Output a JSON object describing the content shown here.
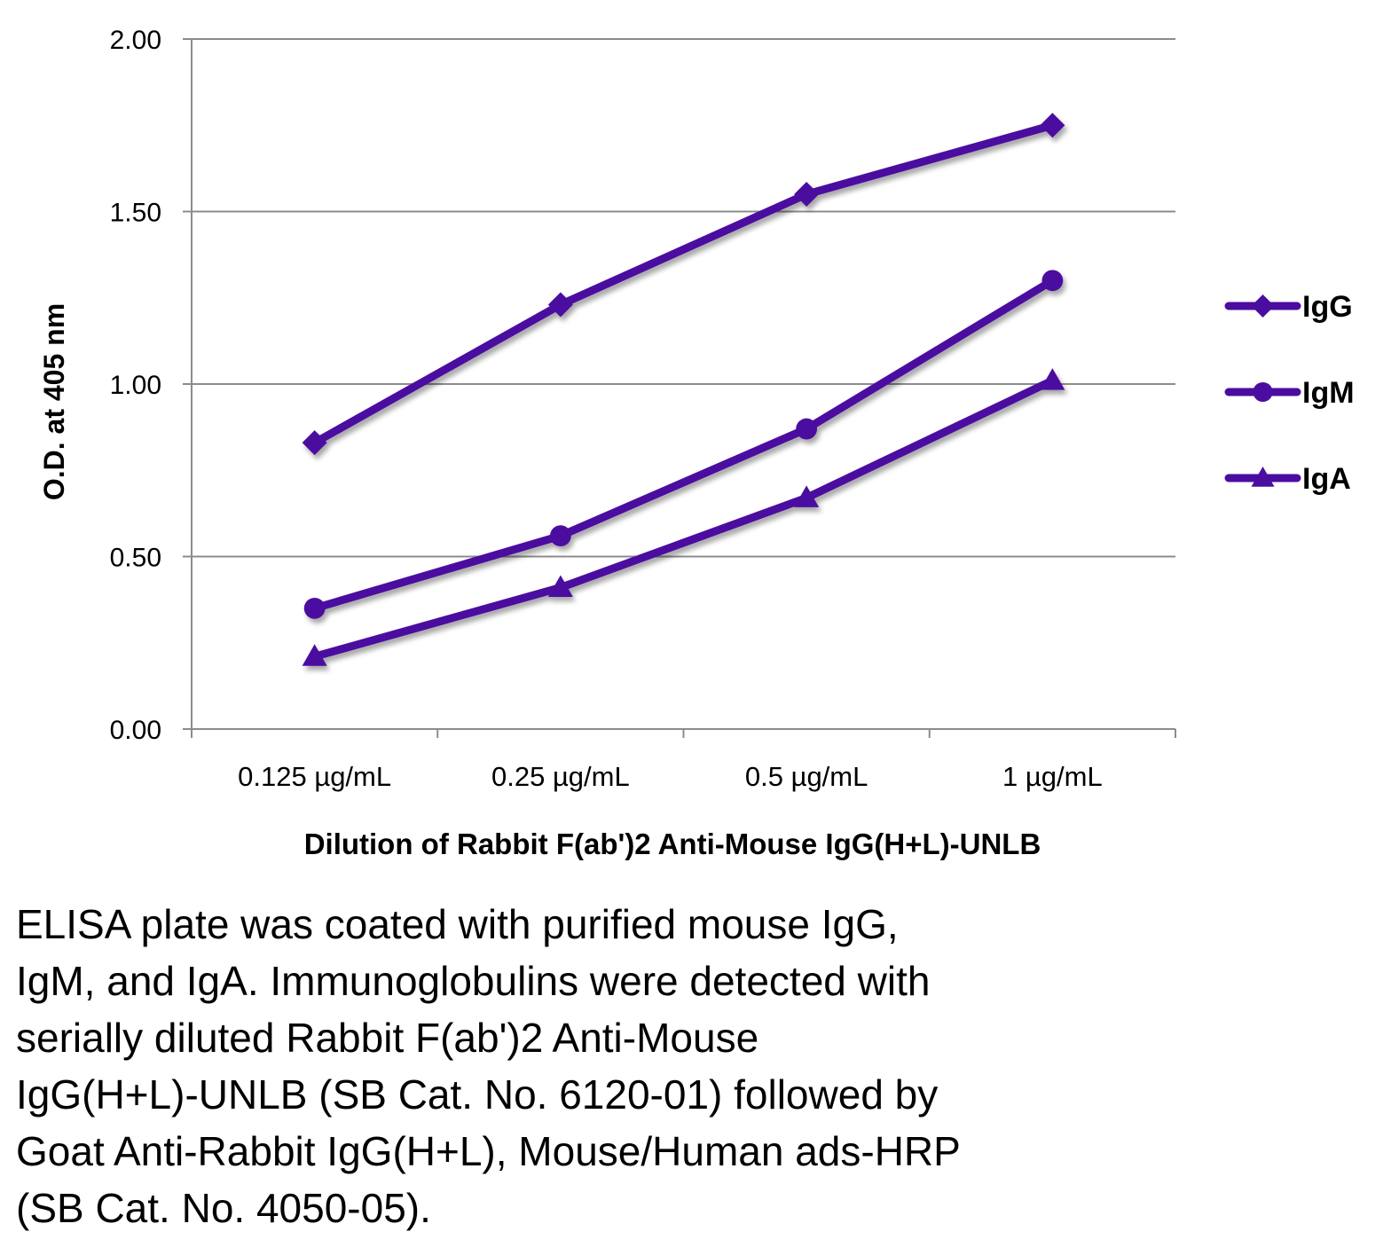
{
  "chart_data": {
    "type": "line",
    "title": "",
    "xlabel": "Dilution of Rabbit F(ab')2 Anti-Mouse IgG(H+L)-UNLB",
    "ylabel": "O.D. at 405 nm",
    "categories": [
      "0.125 µg/mL",
      "0.25 µg/mL",
      "0.5 µg/mL",
      "1 µg/mL"
    ],
    "ylim": [
      0,
      2
    ],
    "yticks": [
      "0.00",
      "0.50",
      "1.00",
      "1.50",
      "2.00"
    ],
    "ytick_values": [
      0,
      0.5,
      1.0,
      1.5,
      2.0
    ],
    "grid": true,
    "legend_position": "right",
    "series": [
      {
        "name": "IgG",
        "marker": "diamond",
        "values": [
          0.83,
          1.23,
          1.55,
          1.75
        ]
      },
      {
        "name": "IgM",
        "marker": "circle",
        "values": [
          0.35,
          0.56,
          0.87,
          1.3
        ]
      },
      {
        "name": "IgA",
        "marker": "triangle",
        "values": [
          0.21,
          0.41,
          0.67,
          1.01
        ]
      }
    ],
    "line_color": "#4B0DA0"
  },
  "caption": {
    "lines": [
      "ELISA plate was coated with purified mouse IgG,",
      "IgM, and IgA.  Immunoglobulins were detected with",
      "serially diluted Rabbit F(ab')2 Anti-Mouse",
      "IgG(H+L)-UNLB (SB Cat. No. 6120-01) followed by",
      "Goat Anti-Rabbit IgG(H+L), Mouse/Human ads-HRP",
      "(SB Cat. No. 4050-05)."
    ]
  }
}
